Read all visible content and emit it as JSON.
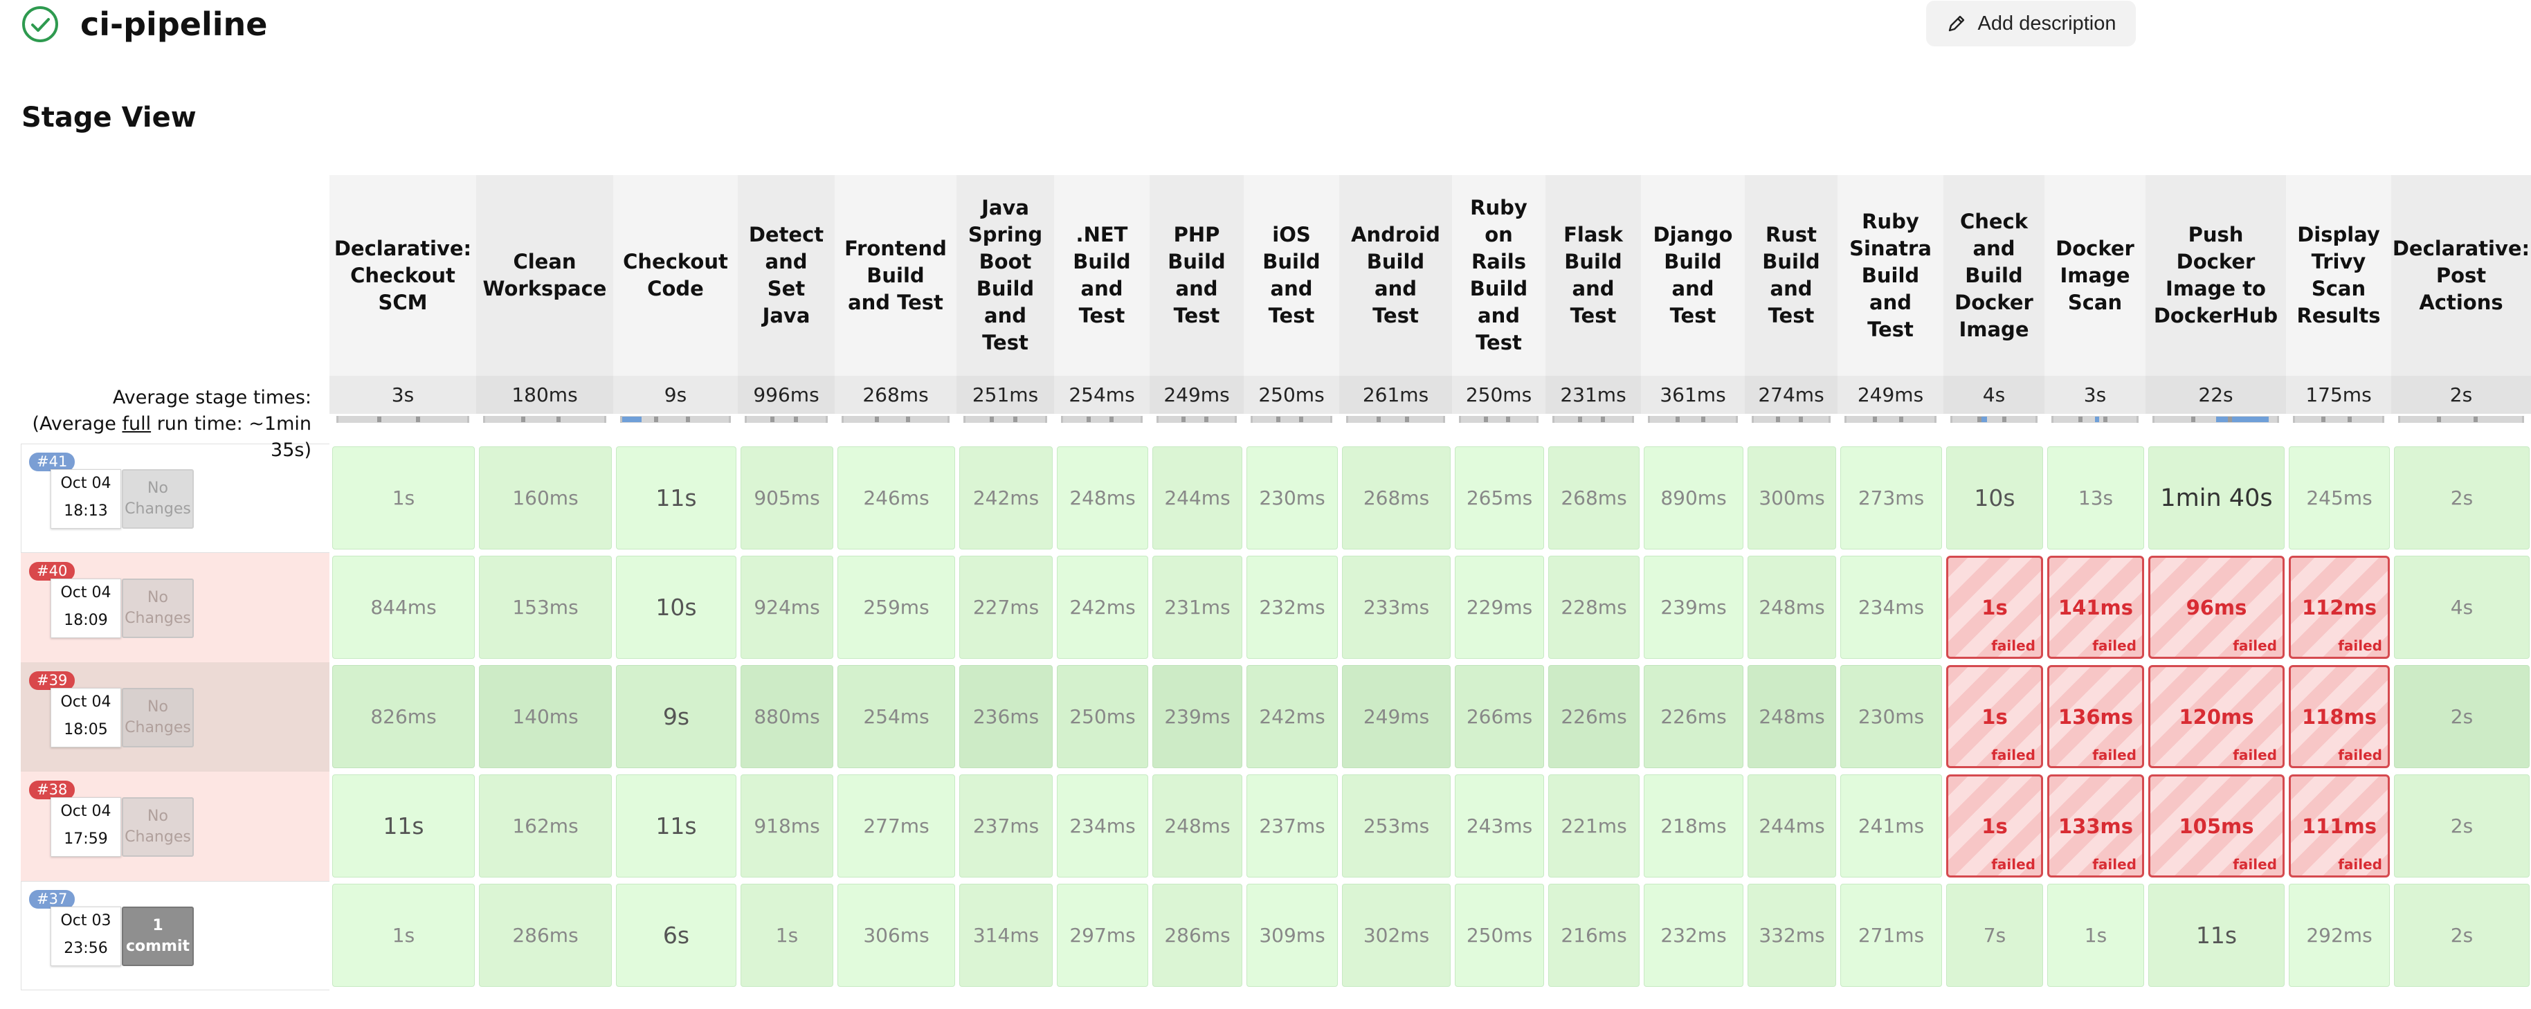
{
  "job": {
    "title": "ci-pipeline",
    "status_icon": "check-circle-icon",
    "status_color": "#2e9a4f"
  },
  "toolbar": {
    "add_description_label": "Add description",
    "add_description_icon": "pencil-icon"
  },
  "stage_view": {
    "title": "Stage View",
    "avg_label_line1": "Average stage times:",
    "avg_label_line2_pre": "(Average ",
    "avg_label_line2_link": "full",
    "avg_label_line2_post": " run time: ~1min",
    "avg_label_line3": "35s)",
    "failed_label": "failed",
    "stages": [
      {
        "name": "Declarative: Checkout SCM",
        "avg": "3s"
      },
      {
        "name": "Clean Workspace",
        "avg": "180ms"
      },
      {
        "name": "Checkout Code",
        "avg": "9s"
      },
      {
        "name": "Detect and Set Java",
        "avg": "996ms"
      },
      {
        "name": "Frontend Build and Test",
        "avg": "268ms"
      },
      {
        "name": "Java Spring Boot Build and Test",
        "avg": "251ms"
      },
      {
        "name": ".NET Build and Test",
        "avg": "254ms"
      },
      {
        "name": "PHP Build and Test",
        "avg": "249ms"
      },
      {
        "name": "iOS Build and Test",
        "avg": "250ms"
      },
      {
        "name": "Android Build and Test",
        "avg": "261ms"
      },
      {
        "name": "Ruby on Rails Build and Test",
        "avg": "250ms"
      },
      {
        "name": "Flask Build and Test",
        "avg": "231ms"
      },
      {
        "name": "Django Build and Test",
        "avg": "361ms"
      },
      {
        "name": "Rust Build and Test",
        "avg": "274ms"
      },
      {
        "name": "Ruby Sinatra Build and Test",
        "avg": "249ms"
      },
      {
        "name": "Check and Build Docker Image",
        "avg": "4s"
      },
      {
        "name": "Docker Image Scan",
        "avg": "3s"
      },
      {
        "name": "Push Docker Image to DockerHub",
        "avg": "22s"
      },
      {
        "name": "Display Trivy Scan Results",
        "avg": "175ms"
      },
      {
        "name": "Declarative: Post Actions",
        "avg": "2s"
      }
    ],
    "builds": [
      {
        "number": "#41",
        "date": "Oct 04",
        "time": "18:13",
        "changes": "No Changes",
        "result": "success",
        "cells": [
          {
            "v": "1s"
          },
          {
            "v": "160ms"
          },
          {
            "v": "11s"
          },
          {
            "v": "905ms"
          },
          {
            "v": "246ms"
          },
          {
            "v": "242ms"
          },
          {
            "v": "248ms"
          },
          {
            "v": "244ms"
          },
          {
            "v": "230ms"
          },
          {
            "v": "268ms"
          },
          {
            "v": "265ms"
          },
          {
            "v": "268ms"
          },
          {
            "v": "890ms"
          },
          {
            "v": "300ms"
          },
          {
            "v": "273ms"
          },
          {
            "v": "10s"
          },
          {
            "v": "13s"
          },
          {
            "v": "1min 40s"
          },
          {
            "v": "245ms"
          },
          {
            "v": "2s"
          }
        ]
      },
      {
        "number": "#40",
        "date": "Oct 04",
        "time": "18:09",
        "changes": "No Changes",
        "result": "failure",
        "cells": [
          {
            "v": "844ms"
          },
          {
            "v": "153ms"
          },
          {
            "v": "10s"
          },
          {
            "v": "924ms"
          },
          {
            "v": "259ms"
          },
          {
            "v": "227ms"
          },
          {
            "v": "242ms"
          },
          {
            "v": "231ms"
          },
          {
            "v": "232ms"
          },
          {
            "v": "233ms"
          },
          {
            "v": "229ms"
          },
          {
            "v": "228ms"
          },
          {
            "v": "239ms"
          },
          {
            "v": "248ms"
          },
          {
            "v": "234ms"
          },
          {
            "v": "1s",
            "failed": true
          },
          {
            "v": "141ms",
            "failed": true
          },
          {
            "v": "96ms",
            "failed": true
          },
          {
            "v": "112ms",
            "failed": true
          },
          {
            "v": "4s"
          }
        ]
      },
      {
        "number": "#39",
        "date": "Oct 04",
        "time": "18:05",
        "changes": "No Changes",
        "result": "failure",
        "cells": [
          {
            "v": "826ms"
          },
          {
            "v": "140ms"
          },
          {
            "v": "9s"
          },
          {
            "v": "880ms"
          },
          {
            "v": "254ms"
          },
          {
            "v": "236ms"
          },
          {
            "v": "250ms"
          },
          {
            "v": "239ms"
          },
          {
            "v": "242ms"
          },
          {
            "v": "249ms"
          },
          {
            "v": "266ms"
          },
          {
            "v": "226ms"
          },
          {
            "v": "226ms"
          },
          {
            "v": "248ms"
          },
          {
            "v": "230ms"
          },
          {
            "v": "1s",
            "failed": true
          },
          {
            "v": "136ms",
            "failed": true
          },
          {
            "v": "120ms",
            "failed": true
          },
          {
            "v": "118ms",
            "failed": true
          },
          {
            "v": "2s"
          }
        ]
      },
      {
        "number": "#38",
        "date": "Oct 04",
        "time": "17:59",
        "changes": "No Changes",
        "result": "failure",
        "cells": [
          {
            "v": "11s"
          },
          {
            "v": "162ms"
          },
          {
            "v": "11s"
          },
          {
            "v": "918ms"
          },
          {
            "v": "277ms"
          },
          {
            "v": "237ms"
          },
          {
            "v": "234ms"
          },
          {
            "v": "248ms"
          },
          {
            "v": "237ms"
          },
          {
            "v": "253ms"
          },
          {
            "v": "243ms"
          },
          {
            "v": "221ms"
          },
          {
            "v": "218ms"
          },
          {
            "v": "244ms"
          },
          {
            "v": "241ms"
          },
          {
            "v": "1s",
            "failed": true
          },
          {
            "v": "133ms",
            "failed": true
          },
          {
            "v": "105ms",
            "failed": true
          },
          {
            "v": "111ms",
            "failed": true
          },
          {
            "v": "2s"
          }
        ]
      },
      {
        "number": "#37",
        "date": "Oct 03",
        "time": "23:56",
        "changes": "1 commit",
        "result": "success",
        "cells": [
          {
            "v": "1s"
          },
          {
            "v": "286ms"
          },
          {
            "v": "6s"
          },
          {
            "v": "1s"
          },
          {
            "v": "306ms"
          },
          {
            "v": "314ms"
          },
          {
            "v": "297ms"
          },
          {
            "v": "286ms"
          },
          {
            "v": "309ms"
          },
          {
            "v": "302ms"
          },
          {
            "v": "250ms"
          },
          {
            "v": "216ms"
          },
          {
            "v": "232ms"
          },
          {
            "v": "332ms"
          },
          {
            "v": "271ms"
          },
          {
            "v": "7s"
          },
          {
            "v": "1s"
          },
          {
            "v": "11s"
          },
          {
            "v": "292ms"
          },
          {
            "v": "2s"
          }
        ]
      }
    ]
  }
}
